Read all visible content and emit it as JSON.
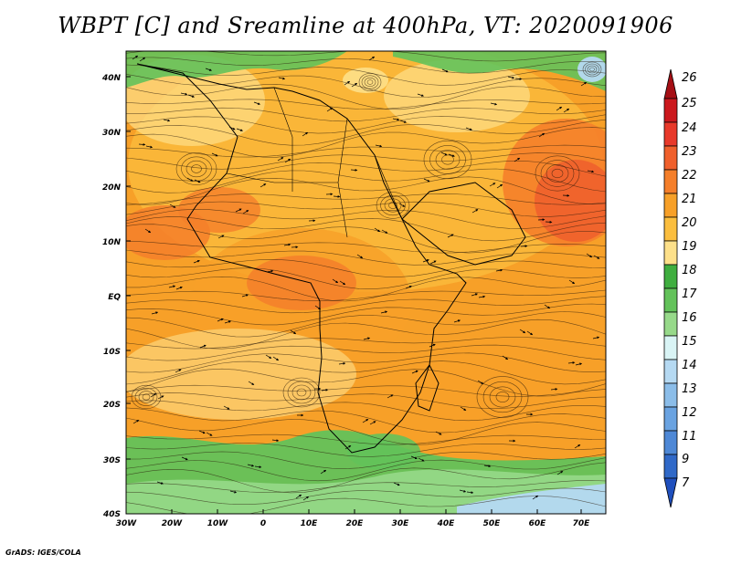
{
  "title": "WBPT [C] and Sreamline at 400hPa, VT: 2020091906",
  "credit": "GrADS: IGES/COLA",
  "map": {
    "lat_labels": [
      "40N",
      "30N",
      "20N",
      "10N",
      "EQ",
      "10S",
      "20S",
      "30S",
      "40S"
    ],
    "lon_labels": [
      "30W",
      "20W",
      "10W",
      "0",
      "10E",
      "20E",
      "30E",
      "40E",
      "50E",
      "60E",
      "70E"
    ]
  },
  "colorbar": {
    "levels": [
      "26",
      "25",
      "24",
      "23",
      "22",
      "21",
      "20",
      "19",
      "18",
      "17",
      "16",
      "15",
      "14",
      "13",
      "12",
      "11",
      "9",
      "7"
    ],
    "colors": [
      "#a50f15",
      "#cb181d",
      "#e8392a",
      "#f0602c",
      "#f57f2a",
      "#f7a028",
      "#fbbe3e",
      "#fde08a",
      "#3fae3f",
      "#63c25a",
      "#97d98a",
      "#d9f4f5",
      "#b5d9f2",
      "#8bbde9",
      "#6aa3e1",
      "#4e88d6",
      "#3069c8",
      "#1f4fbd"
    ]
  }
}
